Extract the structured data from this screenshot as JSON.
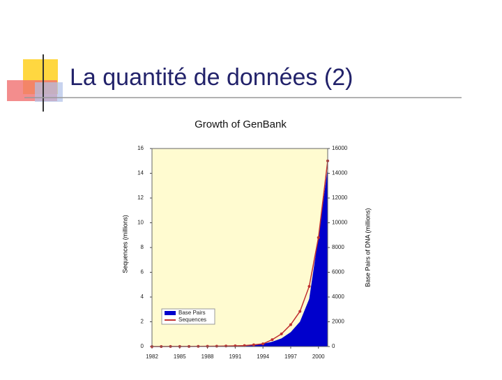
{
  "slide_title": "La quantité de données (2)",
  "chart_data": {
    "type": "combo",
    "title": "Growth of GenBank",
    "y_label": "Sequences (millions)",
    "y2_label": "Base Pairs of DNA (millions)",
    "x": [
      1982,
      1983,
      1984,
      1985,
      1986,
      1987,
      1988,
      1989,
      1990,
      1991,
      1992,
      1993,
      1994,
      1995,
      1996,
      1997,
      1998,
      1999,
      2000,
      2001
    ],
    "xlim": [
      1982,
      2001
    ],
    "xticks": [
      1982,
      1985,
      1988,
      1991,
      1994,
      1997,
      2000
    ],
    "ylim": [
      0,
      16
    ],
    "yticks": [
      0,
      2,
      4,
      6,
      8,
      10,
      12,
      14,
      16
    ],
    "y2lim": [
      0,
      16000
    ],
    "y2ticks": [
      0,
      2000,
      4000,
      6000,
      8000,
      10000,
      12000,
      14000,
      16000
    ],
    "background": "#fffbd0",
    "series": [
      {
        "name": "Base Pairs",
        "type": "area",
        "axis": "y2",
        "color": "#0000cc",
        "values": [
          0.7,
          2.3,
          4,
          5.2,
          9.6,
          15.5,
          23.8,
          34.8,
          49.2,
          71.9,
          101,
          157,
          217,
          385,
          652,
          1160,
          2009,
          3842,
          8900,
          14400
        ]
      },
      {
        "name": "Sequences",
        "type": "line",
        "color": "#c03030",
        "values": [
          0.0006,
          0.0024,
          0.0042,
          0.0057,
          0.0096,
          0.015,
          0.0202,
          0.0286,
          0.04,
          0.055,
          0.079,
          0.143,
          0.215,
          0.555,
          1.02,
          1.77,
          2.84,
          4.86,
          8.8,
          15
        ]
      }
    ]
  }
}
